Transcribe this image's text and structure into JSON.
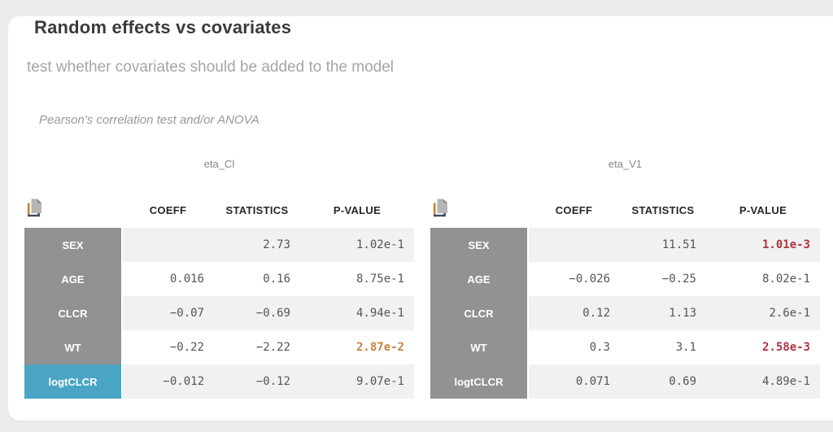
{
  "page": {
    "title": "Random effects vs covariates",
    "subtitle": "test whether covariates should be added to the model",
    "method_note": "Pearson's correlation test and/or ANOVA"
  },
  "columns": [
    "COEFF",
    "STATISTICS",
    "P-VALUE"
  ],
  "icons": {
    "copy": "copy-icon"
  },
  "colors": {
    "page_background": "#ececec",
    "card_background": "#ffffff",
    "row_label_gray": "#929292",
    "selected_blue": "#4aa5c5",
    "stripe_gray": "#f1f1f1",
    "pvalue_warning_orange": "#c8853c",
    "pvalue_significant_red": "#b13440"
  },
  "tables": [
    {
      "name": "eta_Cl",
      "rows": [
        {
          "label": "SEX",
          "selected": false,
          "coeff": "",
          "statistics": "2.73",
          "pvalue": "1.02e-1",
          "pvalue_level": "none"
        },
        {
          "label": "AGE",
          "selected": false,
          "coeff": "0.016",
          "statistics": "0.16",
          "pvalue": "8.75e-1",
          "pvalue_level": "none"
        },
        {
          "label": "CLCR",
          "selected": false,
          "coeff": "−0.07",
          "statistics": "−0.69",
          "pvalue": "4.94e-1",
          "pvalue_level": "none"
        },
        {
          "label": "WT",
          "selected": false,
          "coeff": "−0.22",
          "statistics": "−2.22",
          "pvalue": "2.87e-2",
          "pvalue_level": "warning"
        },
        {
          "label": "logtCLCR",
          "selected": true,
          "coeff": "−0.012",
          "statistics": "−0.12",
          "pvalue": "9.07e-1",
          "pvalue_level": "none"
        }
      ]
    },
    {
      "name": "eta_V1",
      "rows": [
        {
          "label": "SEX",
          "selected": false,
          "coeff": "",
          "statistics": "11.51",
          "pvalue": "1.01e-3",
          "pvalue_level": "significant"
        },
        {
          "label": "AGE",
          "selected": false,
          "coeff": "−0.026",
          "statistics": "−0.25",
          "pvalue": "8.02e-1",
          "pvalue_level": "none"
        },
        {
          "label": "CLCR",
          "selected": false,
          "coeff": "0.12",
          "statistics": "1.13",
          "pvalue": "2.6e-1",
          "pvalue_level": "none"
        },
        {
          "label": "WT",
          "selected": false,
          "coeff": "0.3",
          "statistics": "3.1",
          "pvalue": "2.58e-3",
          "pvalue_level": "significant"
        },
        {
          "label": "logtCLCR",
          "selected": false,
          "coeff": "0.071",
          "statistics": "0.69",
          "pvalue": "4.89e-1",
          "pvalue_level": "none"
        }
      ]
    }
  ]
}
